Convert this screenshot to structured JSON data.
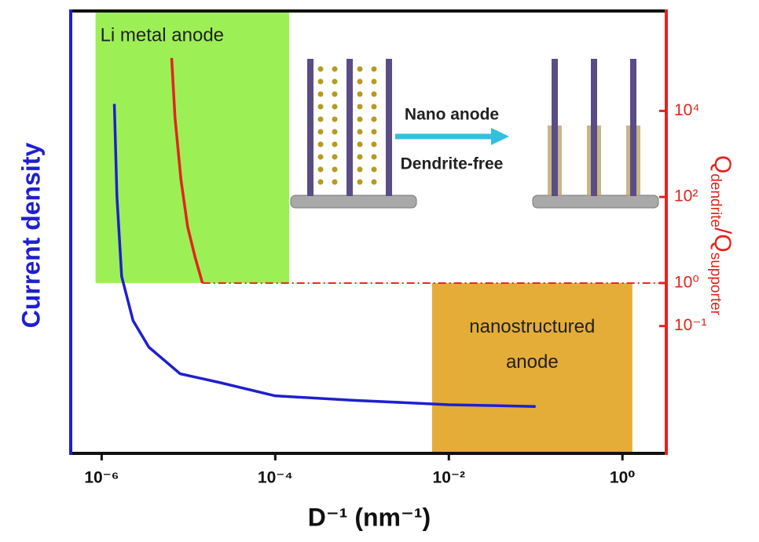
{
  "chart_data": {
    "type": "line",
    "xlabel": "D⁻¹ (nm⁻¹)",
    "ylabel": "Current density",
    "y2label": [
      "Q",
      "dendrite",
      "/Q",
      "supporter"
    ],
    "xscale": "log",
    "y2scale": "log",
    "xlim": [
      4.4e-07,
      3.2
    ],
    "ylim": [
      0,
      100
    ],
    "y2lim": [
      0.00011,
      2100000
    ],
    "xticks": [
      {
        "value": 1e-06,
        "label": "10⁻⁶"
      },
      {
        "value": 0.0001,
        "label": "10⁻⁴"
      },
      {
        "value": 0.01,
        "label": "10⁻²"
      },
      {
        "value": 1,
        "label": "10⁰"
      }
    ],
    "y2ticks": [
      {
        "value": 10000,
        "label": "10⁴"
      },
      {
        "value": 100,
        "label": "10²"
      },
      {
        "value": 1,
        "label": "10⁰"
      },
      {
        "value": 0.1,
        "label": "10⁻¹"
      }
    ],
    "series": [
      {
        "color": "#1f1fd0",
        "x": [
          1.4e-06,
          1.5e-06,
          1.7e-06,
          2.3e-06,
          3.5e-06,
          8e-06,
          2.3e-05,
          0.0001,
          0.0008,
          0.01,
          0.1
        ],
        "values": [
          79,
          58,
          40,
          30,
          24,
          18,
          16,
          13,
          12,
          11,
          10.6
        ]
      },
      {
        "color": "#e3241e",
        "axis": "y2",
        "x": [
          6.4e-06,
          7e-06,
          8.2e-06,
          9.8e-06,
          1.2e-05,
          1.45e-05
        ],
        "values": [
          170000,
          7000,
          250,
          20,
          3.8,
          1
        ]
      },
      {
        "color": "#e3241e",
        "axis": "y2",
        "dash": "dash-dot",
        "x": [
          1.45e-05,
          3.2
        ],
        "values": [
          1,
          1
        ]
      }
    ],
    "regions": [
      {
        "label": [
          "Li metal anode"
        ],
        "color": "#9cf055",
        "x": [
          8.5e-07,
          0.000145
        ],
        "y2": [
          1,
          2100000
        ]
      },
      {
        "label": [
          "nanostructured",
          "anode"
        ],
        "color": "#e3ad37",
        "x": [
          0.0064,
          1.3
        ],
        "y2": [
          0.00011,
          1
        ]
      }
    ],
    "annotations": [
      "Nano anode",
      "Dendrite-free"
    ]
  }
}
